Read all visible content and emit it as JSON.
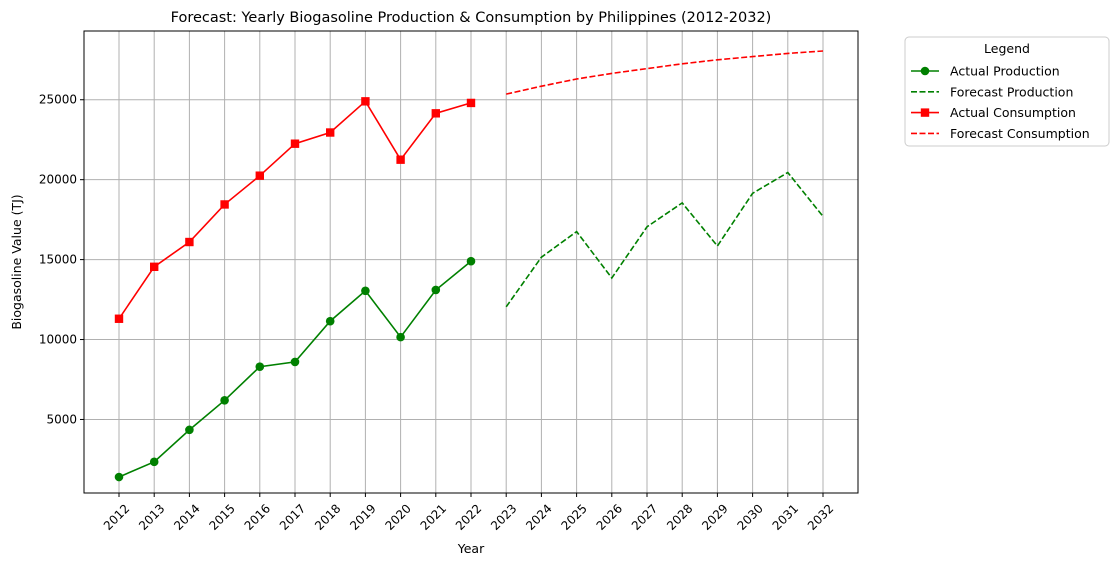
{
  "chart_data": {
    "type": "line",
    "title": "Forecast: Yearly Biogasoline Production & Consumption by Philippines (2012-2032)",
    "xlabel": "Year",
    "ylabel": "Biogasoline Value (TJ)",
    "x": [
      2012,
      2013,
      2014,
      2015,
      2016,
      2017,
      2018,
      2019,
      2020,
      2021,
      2022,
      2023,
      2024,
      2025,
      2026,
      2027,
      2028,
      2029,
      2030,
      2031,
      2032
    ],
    "ylim": [
      400,
      29300
    ],
    "yticks": [
      5000,
      10000,
      15000,
      20000,
      25000
    ],
    "grid": true,
    "legend": {
      "title": "Legend",
      "placement": "outside-right-top"
    },
    "series": [
      {
        "name": "Actual Production",
        "color": "#008000",
        "style": "solid",
        "marker": "circle",
        "x": [
          2012,
          2013,
          2014,
          2015,
          2016,
          2017,
          2018,
          2019,
          2020,
          2021,
          2022
        ],
        "values": [
          1400,
          2350,
          4350,
          6200,
          8300,
          8600,
          11150,
          13050,
          10150,
          13100,
          14900
        ]
      },
      {
        "name": "Forecast Production",
        "color": "#008000",
        "style": "dashed",
        "marker": "none",
        "x": [
          2023,
          2024,
          2025,
          2026,
          2027,
          2028,
          2029,
          2030,
          2031,
          2032
        ],
        "values": [
          12050,
          15150,
          16750,
          13850,
          17050,
          18550,
          15850,
          19150,
          20450,
          17700
        ]
      },
      {
        "name": "Actual Consumption",
        "color": "#ff0000",
        "style": "solid",
        "marker": "square",
        "x": [
          2012,
          2013,
          2014,
          2015,
          2016,
          2017,
          2018,
          2019,
          2020,
          2021,
          2022
        ],
        "values": [
          11300,
          14550,
          16100,
          18450,
          20250,
          22250,
          22950,
          24900,
          21250,
          24150,
          24800
        ]
      },
      {
        "name": "Forecast Consumption",
        "color": "#ff0000",
        "style": "dashed",
        "marker": "none",
        "x": [
          2023,
          2024,
          2025,
          2026,
          2027,
          2028,
          2029,
          2030,
          2031,
          2032
        ],
        "values": [
          25350,
          25850,
          26300,
          26650,
          26950,
          27250,
          27500,
          27700,
          27900,
          28050
        ]
      }
    ]
  }
}
